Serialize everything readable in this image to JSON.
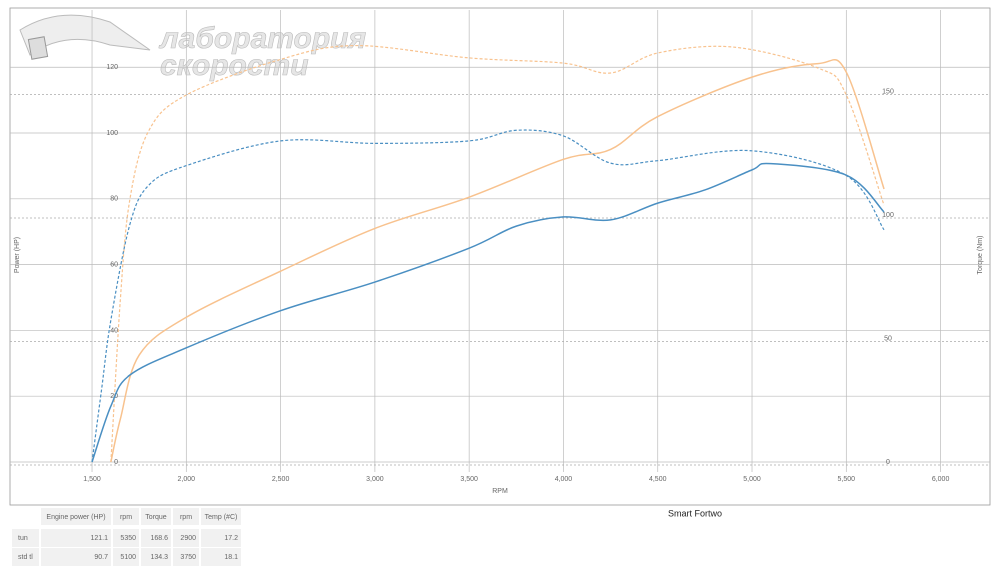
{
  "logo": {
    "line1": "лаборатория",
    "line2": "скорости"
  },
  "chart_data": {
    "type": "line",
    "title": "Smart Fortwo",
    "x_label": "RPM",
    "y_label": "Power (HP)",
    "y2_label": "Torque (Nm)",
    "xlim": [
      1065,
      6262
    ],
    "xticks": [
      {
        "value": 1500,
        "label": "1,500"
      },
      {
        "value": 2000,
        "label": "2,000"
      },
      {
        "value": 2500,
        "label": "2,500"
      },
      {
        "value": 3000,
        "label": "3,000"
      },
      {
        "value": 3500,
        "label": "3,500"
      },
      {
        "value": 4000,
        "label": "4,000"
      },
      {
        "value": 4500,
        "label": "4,500"
      },
      {
        "value": 5000,
        "label": "5,000"
      },
      {
        "value": 5500,
        "label": "5,500"
      },
      {
        "value": 6000,
        "label": "6,000"
      }
    ],
    "ylim": [
      0,
      137.4
    ],
    "yticks": [
      0,
      20,
      40,
      60,
      80,
      100,
      120
    ],
    "y2lim": [
      0,
      183
    ],
    "y2ticks": [
      0,
      50,
      100,
      150
    ],
    "grid": true,
    "series": [
      {
        "color": "#f8c28e",
        "style": "solid",
        "x": [
          1600,
          1650,
          1750,
          2000,
          2500,
          3000,
          3500,
          4000,
          4250,
          4500,
          5000,
          5350,
          5500,
          5700
        ],
        "values": [
          0,
          13,
          32.5,
          44,
          58,
          71,
          80.5,
          92,
          95,
          105,
          117,
          121.1,
          118.5,
          83
        ]
      },
      {
        "color": "#f8c28e",
        "style": "dashed",
        "axis": "y2",
        "x": [
          1600,
          1650,
          1700,
          1800,
          2000,
          2500,
          2900,
          3500,
          4000,
          4250,
          4500,
          4900,
          5350,
          5500,
          5700
        ],
        "values": [
          0,
          65.6,
          106,
          134,
          148.6,
          163,
          168.6,
          163.6,
          161.5,
          157.5,
          165.6,
          168,
          159.5,
          148.6,
          104
        ]
      },
      {
        "color": "#4a8fc2",
        "style": "solid",
        "x": [
          1500,
          1600,
          1700,
          2000,
          2500,
          3000,
          3500,
          3750,
          4000,
          4250,
          4500,
          4750,
          5000,
          5100,
          5500,
          5700
        ],
        "values": [
          0,
          17,
          26.4,
          34.7,
          46,
          54.7,
          65,
          71.7,
          74.5,
          73.6,
          78.7,
          82.7,
          88.8,
          90.7,
          87.2,
          76
        ]
      },
      {
        "color": "#4a8fc2",
        "style": "dashed",
        "axis": "y2",
        "x": [
          1500,
          1550,
          1600,
          1700,
          1800,
          2000,
          2500,
          3000,
          3500,
          3750,
          4000,
          4250,
          4500,
          5000,
          5500,
          5700
        ],
        "values": [
          0,
          29,
          57.5,
          96,
          112,
          120,
          130,
          129,
          130,
          134.3,
          132,
          121,
          122,
          126,
          116,
          94
        ]
      }
    ]
  },
  "legend_table": {
    "columns": [
      "Engine power (HP)",
      "rpm",
      "Torque",
      "rpm",
      "Temp (#C)"
    ],
    "rows": [
      {
        "name": "tun",
        "color": "#f8c28e",
        "values": [
          121.1,
          5350,
          168.6,
          2900,
          17.2
        ]
      },
      {
        "name": "std tl",
        "color": "#4a8fc2",
        "values": [
          90.7,
          5100,
          134.3,
          3750,
          18.1
        ]
      }
    ]
  }
}
